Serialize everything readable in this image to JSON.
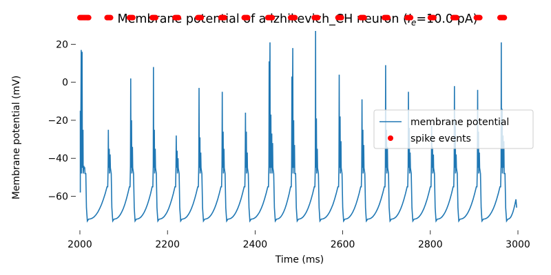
{
  "chart_data": {
    "type": "line",
    "title_prefix": "Membrane potential of a izhikevich_CH neuron (",
    "title_symbol": "I",
    "title_symbol_sub": "e",
    "title_suffix": "=10.0 pA)",
    "xlabel": "Time (ms)",
    "ylabel": "Membrane potential (mV)",
    "xlim": [
      2000,
      3000
    ],
    "ylim": [
      -75,
      27
    ],
    "xticks": [
      2000,
      2200,
      2400,
      2600,
      2800,
      3000
    ],
    "yticks": [
      -60,
      -40,
      -20,
      0,
      20
    ],
    "grid": false,
    "legend_position": "right",
    "line_color": "#1f77b4",
    "spike_color": "#ff0000",
    "series": [
      {
        "name": "membrane potential",
        "start_value": -58,
        "end_value": -66,
        "bursts": [
          {
            "t": 2001,
            "peaks": [
              -15,
              17,
              16,
              -25,
              -44,
              -45
            ]
          },
          {
            "t": 2065,
            "peaks": [
              -25,
              -35,
              -38
            ]
          },
          {
            "t": 2116,
            "peaks": [
              2,
              -20,
              -34
            ]
          },
          {
            "t": 2168,
            "peaks": [
              8,
              -25,
              -35
            ]
          },
          {
            "t": 2220,
            "peaks": [
              -28,
              -36,
              -40
            ]
          },
          {
            "t": 2272,
            "peaks": [
              -3,
              -29,
              -37
            ]
          },
          {
            "t": 2325,
            "peaks": [
              -5,
              -26,
              -35
            ]
          },
          {
            "t": 2378,
            "peaks": [
              -16,
              -26,
              -37
            ]
          },
          {
            "t": 2432,
            "peaks": [
              11,
              21,
              -17,
              -27,
              -32
            ]
          },
          {
            "t": 2484,
            "peaks": [
              3,
              18,
              -20,
              -33
            ]
          },
          {
            "t": 2538,
            "peaks": [
              27,
              -19,
              -35
            ]
          },
          {
            "t": 2592,
            "peaks": [
              4,
              -18,
              -31
            ]
          },
          {
            "t": 2644,
            "peaks": [
              -9,
              -25,
              -33
            ]
          },
          {
            "t": 2698,
            "peaks": [
              9,
              -25,
              -34
            ]
          },
          {
            "t": 2750,
            "peaks": [
              -5,
              -24,
              -37
            ]
          },
          {
            "t": 2803,
            "peaks": [
              -23,
              -34,
              -38
            ]
          },
          {
            "t": 2855,
            "peaks": [
              -2,
              -23,
              -38
            ]
          },
          {
            "t": 2908,
            "peaks": [
              -4,
              -26,
              -37
            ]
          },
          {
            "t": 2962,
            "peaks": [
              21,
              -14,
              -28,
              -31
            ]
          }
        ]
      },
      {
        "name": "spike events",
        "y": 34,
        "times": [
          2000,
          2002,
          2004,
          2006,
          2008,
          2010,
          2012,
          2014,
          2016,
          2018,
          2020,
          2062,
          2064,
          2066,
          2068,
          2070,
          2113,
          2115,
          2117,
          2119,
          2121,
          2165,
          2167,
          2169,
          2171,
          2173,
          2217,
          2219,
          2221,
          2223,
          2225,
          2269,
          2271,
          2273,
          2275,
          2277,
          2322,
          2324,
          2326,
          2328,
          2330,
          2375,
          2377,
          2379,
          2381,
          2383,
          2429,
          2431,
          2433,
          2435,
          2437,
          2439,
          2481,
          2483,
          2485,
          2487,
          2489,
          2491,
          2535,
          2537,
          2539,
          2541,
          2543,
          2589,
          2591,
          2593,
          2595,
          2597,
          2641,
          2643,
          2645,
          2647,
          2649,
          2695,
          2697,
          2699,
          2701,
          2703,
          2747,
          2749,
          2751,
          2753,
          2755,
          2800,
          2802,
          2804,
          2806,
          2808,
          2852,
          2854,
          2856,
          2858,
          2860,
          2905,
          2907,
          2909,
          2911,
          2913,
          2959,
          2961,
          2963,
          2965,
          2967,
          2969
        ]
      }
    ]
  }
}
